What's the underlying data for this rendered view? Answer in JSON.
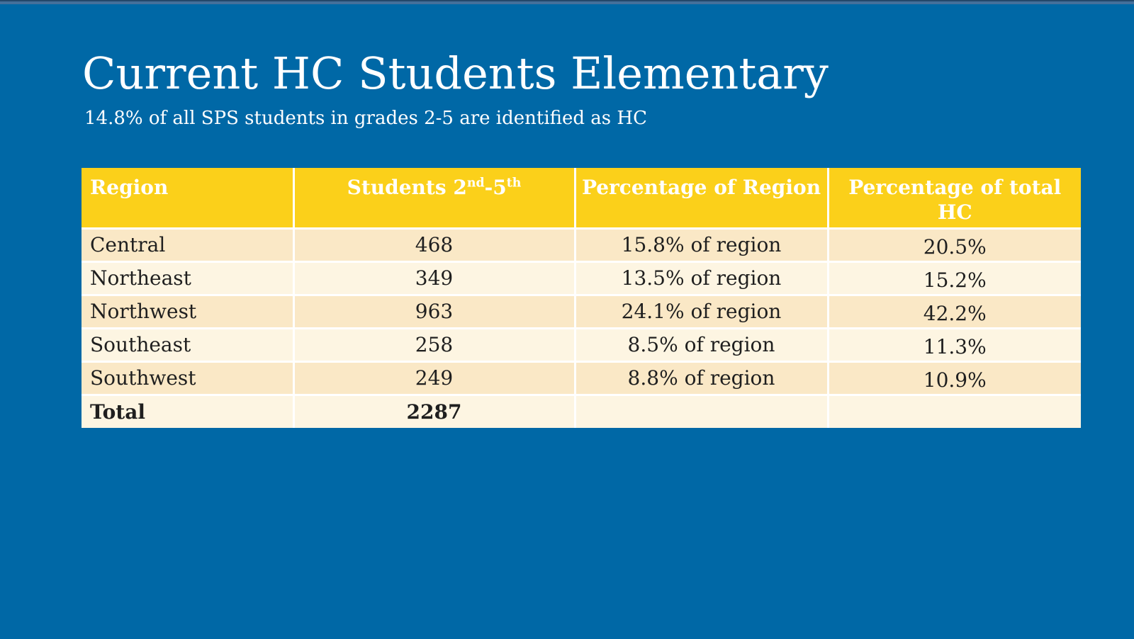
{
  "slide": {
    "title": "Current HC Students Elementary",
    "subtitle": "14.8% of all SPS students in grades 2-5 are identified as HC"
  },
  "colors": {
    "background_blue": "#0068A6",
    "header_yellow": "#FBD01A",
    "row_cream_dark": "#FAE8C6",
    "row_cream_light": "#FDF5E2",
    "title_text": "#FFFFFF",
    "body_text": "#1F1F1F"
  },
  "table": {
    "headers": {
      "region": "Region",
      "students": {
        "base1": "Students 2",
        "sup1": "nd",
        "base2": "-5",
        "sup2": "th"
      },
      "pct_region": "Percentage of Region",
      "pct_total": "Percentage of total HC"
    },
    "rows": [
      {
        "region": "Central",
        "students": "468",
        "pct_region": "15.8% of region",
        "pct_total": "20.5%"
      },
      {
        "region": "Northeast",
        "students": "349",
        "pct_region": "13.5% of region",
        "pct_total": "15.2%"
      },
      {
        "region": "Northwest",
        "students": "963",
        "pct_region": "24.1% of region",
        "pct_total": "42.2%"
      },
      {
        "region": "Southeast",
        "students": "258",
        "pct_region": "8.5% of region",
        "pct_total": "11.3%"
      },
      {
        "region": "Southwest",
        "students": "249",
        "pct_region": "8.8% of region",
        "pct_total": "10.9%"
      }
    ],
    "total": {
      "label": "Total",
      "students": "2287",
      "pct_region": "",
      "pct_total": ""
    }
  }
}
